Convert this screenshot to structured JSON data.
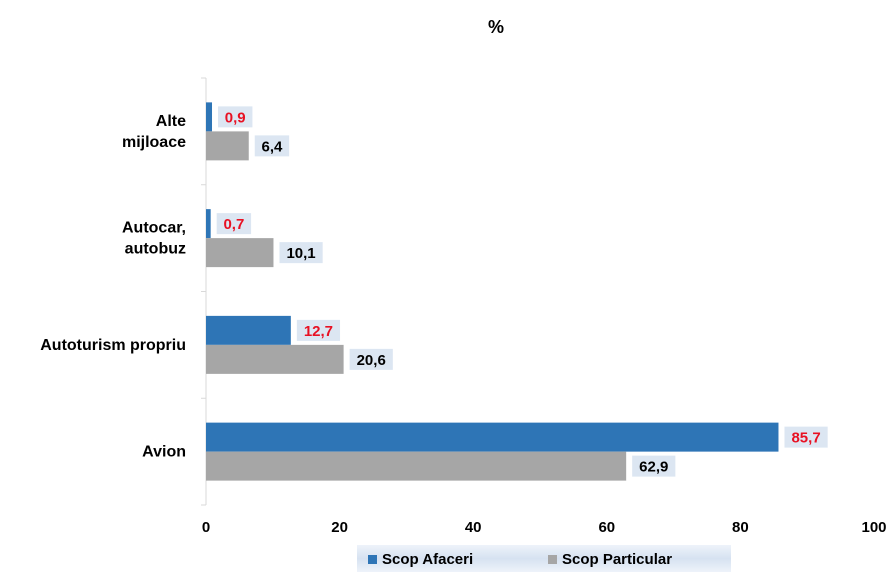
{
  "chart_data": {
    "type": "bar",
    "orientation": "horizontal",
    "title": "%",
    "categories": [
      "Avion",
      "Autoturism propriu",
      "Autocar, autobuz",
      "Alte mijloace"
    ],
    "category_lines": [
      [
        "Avion"
      ],
      [
        "Autoturism propriu"
      ],
      [
        "Autocar,",
        "autobuz"
      ],
      [
        "Alte",
        "mijloace"
      ]
    ],
    "series": [
      {
        "name": "Scop Afaceri",
        "values": [
          85.7,
          12.7,
          0.7,
          0.9
        ],
        "labels": [
          "85,7",
          "12,7",
          "0,7",
          "0,9"
        ],
        "color": "#2e75b6",
        "label_color": "#e81123"
      },
      {
        "name": "Scop Particular",
        "values": [
          62.9,
          20.6,
          10.1,
          6.4
        ],
        "labels": [
          "62,9",
          "20,6",
          "10,1",
          "6,4"
        ],
        "color": "#a6a6a6",
        "label_color": "#000000"
      }
    ],
    "xlim": [
      0,
      100
    ],
    "xticks": [
      "0",
      "20",
      "40",
      "60",
      "80",
      "100"
    ],
    "grid": false,
    "legend_position": "bottom",
    "label_background": "#dce6f2"
  }
}
